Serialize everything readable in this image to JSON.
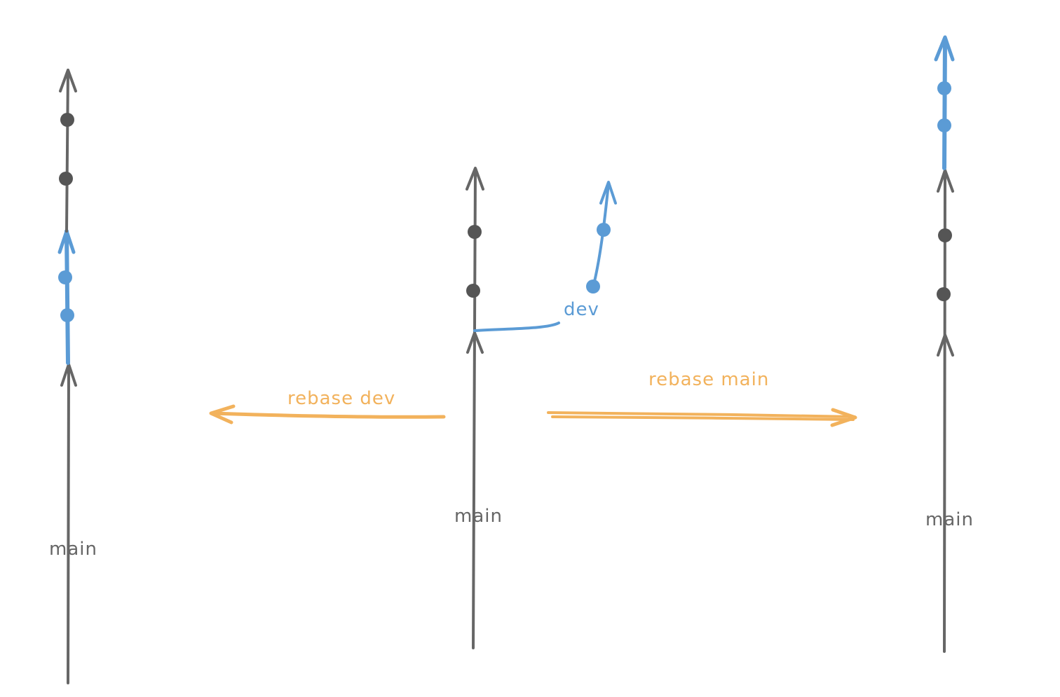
{
  "colors": {
    "main": "#666666",
    "commit_main": "#555555",
    "dev": "#5b9bd5",
    "rebase_arrow": "#f2b25c"
  },
  "labels": {
    "left_main": "main",
    "middle_main": "main",
    "middle_dev": "dev",
    "right_main": "main",
    "rebase_dev": "rebase dev",
    "rebase_main": "rebase main"
  }
}
